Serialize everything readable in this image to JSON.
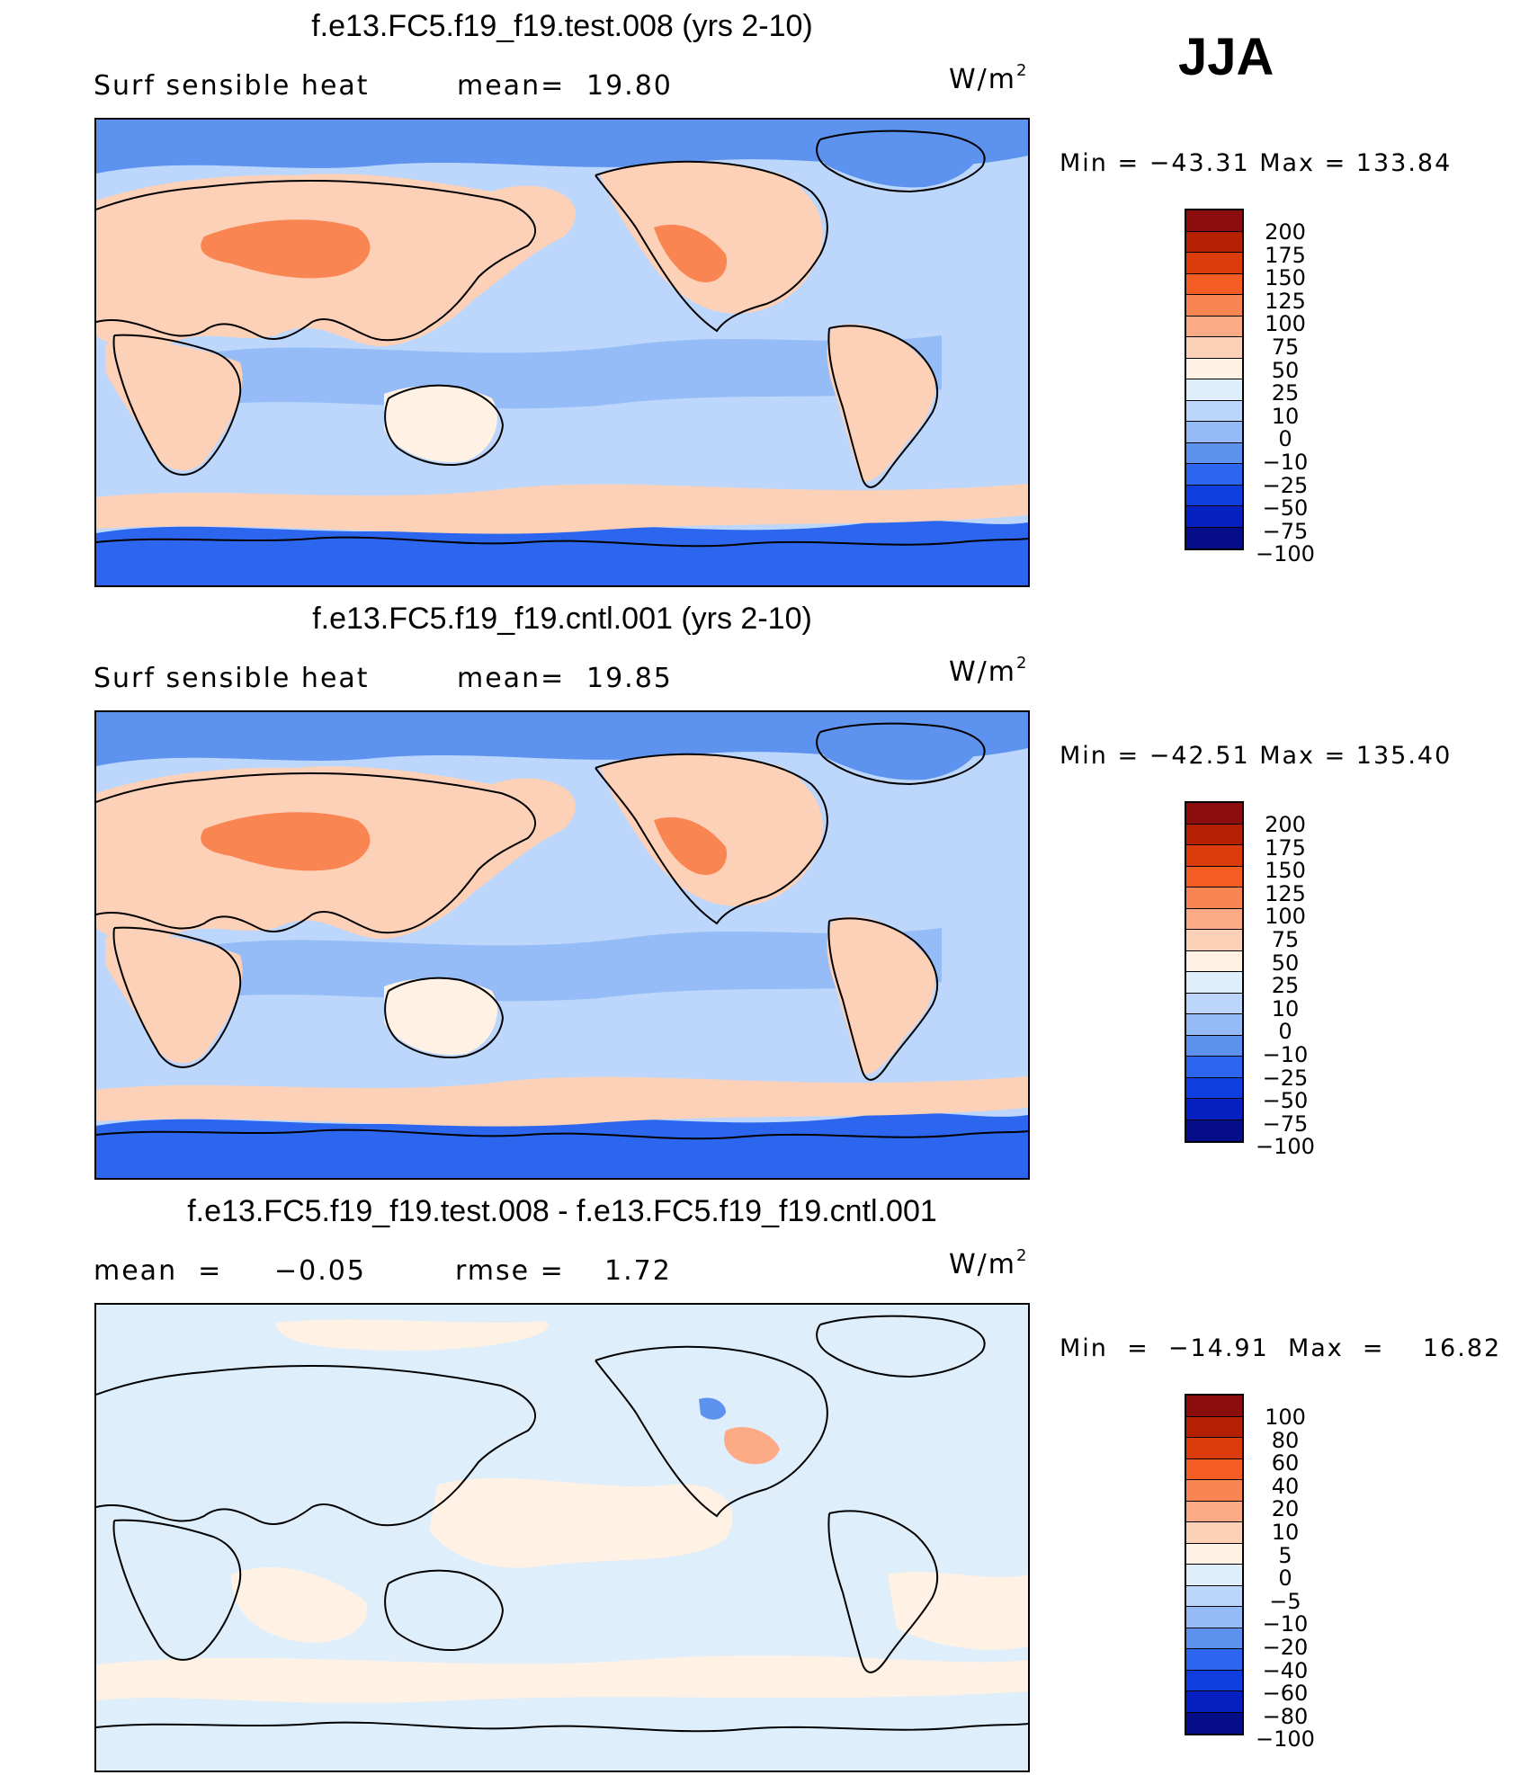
{
  "season": "JJA",
  "panels": [
    {
      "title": "f.e13.FC5.f19_f19.test.008 (yrs 2-10)",
      "left_label": "Surf  sensible  heat",
      "stat_label": "mean=",
      "stat_value": "19.80",
      "units_base": "W/m",
      "units_sup": "2",
      "minmax": "Min  =  −43.31  Max  =  133.84",
      "colorbar_ticks": [
        "200",
        "175",
        "150",
        "125",
        "100",
        "75",
        "50",
        "25",
        "10",
        "0",
        "−10",
        "−25",
        "−50",
        "−75",
        "−100"
      ]
    },
    {
      "title": "f.e13.FC5.f19_f19.cntl.001 (yrs 2-10)",
      "left_label": "Surf  sensible  heat",
      "stat_label": "mean=",
      "stat_value": "19.85",
      "units_base": "W/m",
      "units_sup": "2",
      "minmax": "Min  =  −42.51  Max  =  135.40",
      "colorbar_ticks": [
        "200",
        "175",
        "150",
        "125",
        "100",
        "75",
        "50",
        "25",
        "10",
        "0",
        "−10",
        "−25",
        "−50",
        "−75",
        "−100"
      ]
    },
    {
      "title": "f.e13.FC5.f19_f19.test.008 - f.e13.FC5.f19_f19.cntl.001",
      "left_label": "mean  =     −0.05",
      "stat_label": "rmse  =",
      "stat_value": "1.72",
      "units_base": "W/m",
      "units_sup": "2",
      "minmax": "Min  =  −14.91  Max  =    16.82",
      "colorbar_ticks": [
        "100",
        "80",
        "60",
        "40",
        "20",
        "10",
        "5",
        "0",
        "−5",
        "−10",
        "−20",
        "−40",
        "−60",
        "−80",
        "−100"
      ]
    }
  ],
  "colors": {
    "scale": [
      "#8b0d0d",
      "#b52002",
      "#dc3b0b",
      "#f35d23",
      "#f98552",
      "#fcab86",
      "#fdd0b8",
      "#fff1e3",
      "#dfeefb",
      "#bcd7fb",
      "#95bcf6",
      "#5d93ef",
      "#2d66ee",
      "#0f3ee0",
      "#0620c2",
      "#050e88"
    ],
    "coast": "#000000"
  }
}
